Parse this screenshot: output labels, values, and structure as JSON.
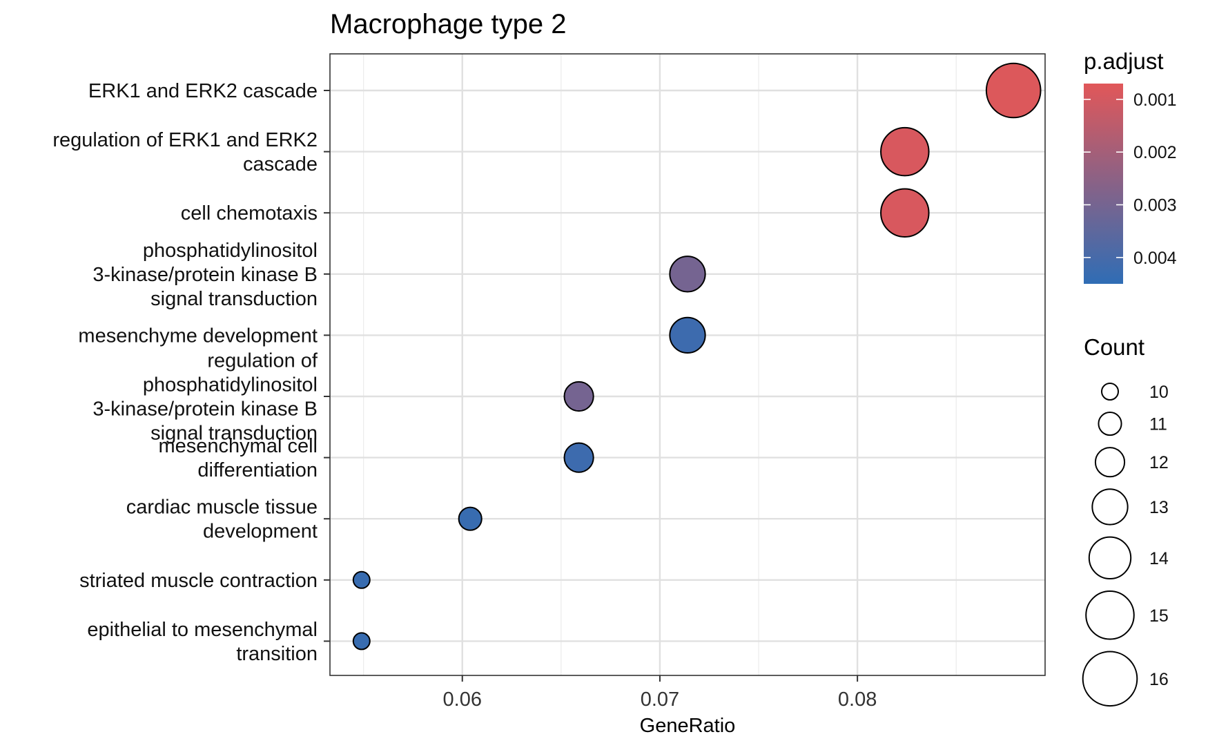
{
  "chart_data": {
    "type": "scatter",
    "title": "Macrophage type 2",
    "xlabel": "GeneRatio",
    "ylabel": "",
    "xlim": [
      0.0533,
      0.0895
    ],
    "x_ticks": [
      {
        "value": 0.06,
        "label": "0.06"
      },
      {
        "value": 0.07,
        "label": "0.07"
      },
      {
        "value": 0.08,
        "label": "0.08"
      }
    ],
    "x_minor": [
      0.055,
      0.065,
      0.075,
      0.085
    ],
    "grid": true,
    "categories": [
      {
        "lines": [
          "ERK1 and ERK2 cascade"
        ]
      },
      {
        "lines": [
          "regulation of ERK1 and ERK2",
          "cascade"
        ]
      },
      {
        "lines": [
          "cell chemotaxis"
        ]
      },
      {
        "lines": [
          "phosphatidylinositol",
          "3-kinase/protein kinase B",
          "signal transduction"
        ]
      },
      {
        "lines": [
          "mesenchyme development"
        ]
      },
      {
        "lines": [
          "regulation of",
          "phosphatidylinositol",
          "3-kinase/protein kinase B",
          "signal transduction"
        ]
      },
      {
        "lines": [
          "mesenchymal cell",
          "differentiation"
        ]
      },
      {
        "lines": [
          "cardiac muscle tissue",
          "development"
        ]
      },
      {
        "lines": [
          "striated muscle contraction"
        ]
      },
      {
        "lines": [
          "epithelial to mesenchymal",
          "transition"
        ]
      }
    ],
    "points": [
      {
        "category": 0,
        "gene_ratio": 0.0879,
        "count": 16,
        "p_adjust": 0.0008
      },
      {
        "category": 1,
        "gene_ratio": 0.0824,
        "count": 15,
        "p_adjust": 0.0009
      },
      {
        "category": 2,
        "gene_ratio": 0.0824,
        "count": 15,
        "p_adjust": 0.0009
      },
      {
        "category": 3,
        "gene_ratio": 0.0714,
        "count": 13,
        "p_adjust": 0.003
      },
      {
        "category": 4,
        "gene_ratio": 0.0714,
        "count": 13,
        "p_adjust": 0.0042
      },
      {
        "category": 5,
        "gene_ratio": 0.0659,
        "count": 12,
        "p_adjust": 0.003
      },
      {
        "category": 6,
        "gene_ratio": 0.0659,
        "count": 12,
        "p_adjust": 0.0042
      },
      {
        "category": 7,
        "gene_ratio": 0.0604,
        "count": 11,
        "p_adjust": 0.0043
      },
      {
        "category": 8,
        "gene_ratio": 0.0549,
        "count": 10,
        "p_adjust": 0.0043
      },
      {
        "category": 9,
        "gene_ratio": 0.0549,
        "count": 10,
        "p_adjust": 0.0043
      }
    ],
    "color_legend": {
      "title": "p.adjust",
      "low_color": "#E15759",
      "high_color": "#2F6DB5",
      "range": [
        0.0007,
        0.0045
      ],
      "ticks": [
        {
          "value": 0.001,
          "label": "0.001"
        },
        {
          "value": 0.002,
          "label": "0.002"
        },
        {
          "value": 0.003,
          "label": "0.003"
        },
        {
          "value": 0.004,
          "label": "0.004"
        }
      ]
    },
    "size_legend": {
      "title": "Count",
      "values": [
        10,
        11,
        12,
        13,
        14,
        15,
        16
      ],
      "labels": [
        "10",
        "11",
        "12",
        "13",
        "14",
        "15",
        "16"
      ]
    }
  }
}
